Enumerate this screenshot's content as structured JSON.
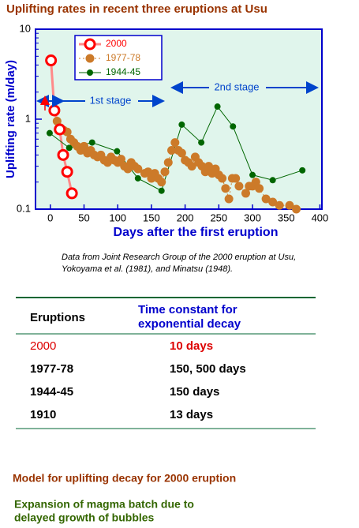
{
  "chart_data": {
    "type": "scatter",
    "title": "Uplifting rates in recent three eruptions at Usu",
    "x_label": "Days after the first eruption",
    "y_label": "Uplifting rate (m/day)",
    "xlim": [
      -22,
      403
    ],
    "xticks": [
      0,
      50,
      100,
      150,
      200,
      250,
      300,
      350,
      400
    ],
    "ylim": [
      0.1,
      10
    ],
    "yticks": [
      0.1,
      1,
      10
    ],
    "log_y": true,
    "grid": false,
    "series": [
      {
        "name": "2000",
        "color": "#ff0000",
        "line_color": "#ff8a8a",
        "line_style": "solid",
        "x": [
          1,
          6,
          14,
          19,
          25,
          32
        ],
        "values": [
          4.5,
          1.25,
          0.77,
          0.4,
          0.26,
          0.15
        ]
      },
      {
        "name": "1977-78",
        "color": "#cc7a29",
        "line_color": "#cc7a29",
        "line_style": "dotted",
        "x": [
          10,
          15,
          20,
          25,
          30,
          35,
          40,
          45,
          50,
          55,
          60,
          65,
          70,
          75,
          80,
          85,
          90,
          95,
          100,
          105,
          110,
          115,
          120,
          125,
          130,
          140,
          145,
          150,
          155,
          160,
          165,
          170,
          175,
          180,
          185,
          190,
          195,
          200,
          205,
          210,
          215,
          220,
          225,
          230,
          235,
          240,
          245,
          250,
          255,
          260,
          265,
          270,
          275,
          280,
          290,
          295,
          300,
          305,
          310,
          320,
          330,
          340,
          355,
          365
        ],
        "values": [
          0.95,
          0.8,
          0.75,
          0.72,
          0.6,
          0.55,
          0.5,
          0.45,
          0.5,
          0.42,
          0.45,
          0.4,
          0.38,
          0.4,
          0.35,
          0.33,
          0.38,
          0.35,
          0.33,
          0.36,
          0.3,
          0.28,
          0.33,
          0.3,
          0.28,
          0.25,
          0.26,
          0.22,
          0.25,
          0.22,
          0.2,
          0.26,
          0.33,
          0.45,
          0.55,
          0.45,
          0.42,
          0.35,
          0.33,
          0.3,
          0.38,
          0.33,
          0.3,
          0.26,
          0.3,
          0.25,
          0.28,
          0.24,
          0.22,
          0.17,
          0.13,
          0.22,
          0.22,
          0.18,
          0.15,
          0.18,
          0.18,
          0.2,
          0.17,
          0.13,
          0.12,
          0.11,
          0.11,
          0.1
        ]
      },
      {
        "name": "1944-45",
        "color": "#006600",
        "line_color": "#006600",
        "line_style": "solid",
        "x": [
          -1,
          28,
          62,
          99,
          130,
          165,
          195,
          224,
          248,
          271,
          300,
          330,
          374
        ],
        "values": [
          0.7,
          0.48,
          0.55,
          0.44,
          0.22,
          0.16,
          0.87,
          0.55,
          1.38,
          0.83,
          0.24,
          0.21,
          0.27
        ]
      }
    ],
    "annotations": [
      "1st stage",
      "2nd stage"
    ]
  },
  "caption": [
    "Data from Joint Research Group of the 2000 eruption at Usu,",
    "Yokoyama et al. (1981), and Minatsu (1948)."
  ],
  "table": {
    "header": [
      "Eruptions",
      [
        "Time constant for",
        "exponential decay"
      ]
    ],
    "rows": [
      [
        "2000",
        "10 days"
      ],
      [
        "1977-78",
        "150, 500 days"
      ],
      [
        "1944-45",
        "150 days"
      ],
      [
        "1910",
        "13 days"
      ]
    ]
  },
  "model": {
    "title": "Model for uplifting decay for 2000 eruption",
    "text": [
      "Expansion of magma batch due to",
      "delayed growth of bubbles"
    ]
  }
}
